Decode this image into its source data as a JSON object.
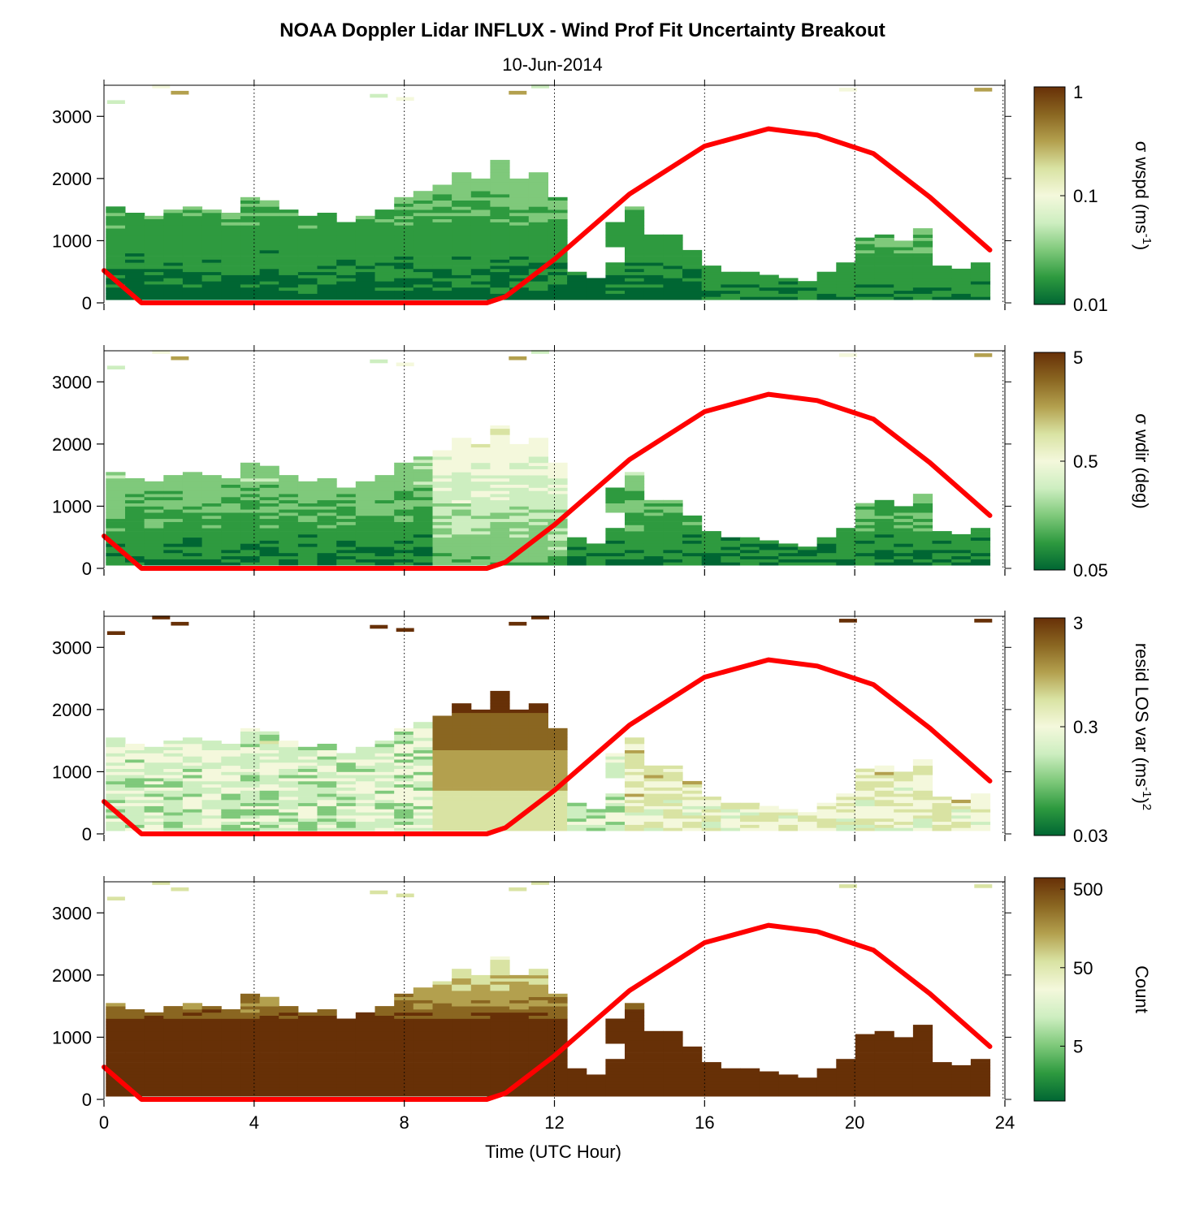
{
  "title": "NOAA Doppler Lidar INFLUX - Wind Prof Fit Uncertainty Breakout",
  "subtitle": "10-Jun-2014",
  "xlabel": "Time (UTC Hour)",
  "colors": {
    "curve": "#ff0000",
    "colormap": [
      "#006633",
      "#2e9a3f",
      "#7fc97b",
      "#cdeec0",
      "#f4f8dc",
      "#d9e3a3",
      "#b3a04e",
      "#8a6621",
      "#673007"
    ]
  },
  "chart_data": [
    {
      "type": "heatmap",
      "title": "",
      "xlabel": "",
      "ylabel": "",
      "xlim": [
        0,
        24
      ],
      "ylim": [
        0,
        3500
      ],
      "x_ticks": [
        0,
        4,
        8,
        12,
        16,
        20,
        24
      ],
      "y_ticks": [
        "0",
        "1000",
        "2000",
        "3000"
      ],
      "y_tick_values": [
        0,
        1000,
        2000,
        3000
      ],
      "colorbar": {
        "label": "σ wspd (ms",
        "sup": "-1",
        "label_suffix": ")",
        "scale": "log",
        "range": [
          0.01,
          1
        ],
        "ticks": [
          "1",
          "0.1",
          "0.01"
        ],
        "tick_values": [
          1,
          0.1,
          0.01
        ]
      },
      "profile_top_heights": [
        1550,
        1450,
        1400,
        1500,
        1550,
        1500,
        1450,
        1700,
        1650,
        1500,
        1400,
        1450,
        1300,
        1400,
        1500,
        1700,
        1800,
        1900,
        2100,
        2000,
        2300,
        2000,
        2100,
        1700,
        500,
        400,
        1300,
        1550,
        1100,
        1100,
        850,
        600,
        500,
        500,
        450,
        400,
        350,
        500,
        650,
        1050,
        1100,
        1000,
        1200,
        600,
        550,
        650
      ],
      "sparse_patches": [
        [
          0.3,
          3200
        ],
        [
          1.5,
          3450
        ],
        [
          2,
          3350
        ],
        [
          7.3,
          3300
        ],
        [
          8,
          3250
        ],
        [
          11,
          3350
        ],
        [
          11.6,
          3450
        ],
        [
          19.8,
          3400
        ],
        [
          23.4,
          3400
        ]
      ],
      "curve": {
        "name": "",
        "x": [
          0,
          1,
          10.2,
          10.7,
          12,
          14,
          16,
          17.7,
          19,
          20.5,
          22,
          23.6
        ],
        "y": [
          520,
          0,
          0,
          100,
          700,
          1750,
          2520,
          2800,
          2700,
          2400,
          1700,
          850
        ]
      }
    },
    {
      "type": "heatmap",
      "title": "",
      "xlabel": "",
      "ylabel": "",
      "xlim": [
        0,
        24
      ],
      "ylim": [
        0,
        3500
      ],
      "x_ticks": [
        0,
        4,
        8,
        12,
        16,
        20,
        24
      ],
      "y_ticks": [
        "0",
        "1000",
        "2000",
        "3000"
      ],
      "y_tick_values": [
        0,
        1000,
        2000,
        3000
      ],
      "colorbar": {
        "label": "σ wdir (deg)",
        "sup": "",
        "label_suffix": "",
        "scale": "log",
        "range": [
          0.05,
          5
        ],
        "ticks": [
          "5",
          "0.5",
          "0.05"
        ],
        "tick_values": [
          5,
          0.5,
          0.05
        ]
      },
      "profile_top_heights": [
        1550,
        1450,
        1400,
        1500,
        1550,
        1500,
        1450,
        1700,
        1650,
        1500,
        1400,
        1450,
        1300,
        1400,
        1500,
        1700,
        1800,
        1900,
        2100,
        2000,
        2300,
        2000,
        2100,
        1700,
        500,
        400,
        1300,
        1550,
        1100,
        1100,
        850,
        600,
        500,
        500,
        450,
        400,
        350,
        500,
        650,
        1050,
        1100,
        1000,
        1200,
        600,
        550,
        650
      ],
      "sparse_patches": [
        [
          0.3,
          3200
        ],
        [
          1.5,
          3450
        ],
        [
          2,
          3350
        ],
        [
          7.3,
          3300
        ],
        [
          8,
          3250
        ],
        [
          11,
          3350
        ],
        [
          11.6,
          3450
        ],
        [
          19.8,
          3400
        ],
        [
          23.4,
          3400
        ]
      ],
      "curve": {
        "name": "",
        "x": [
          0,
          1,
          10.2,
          10.7,
          12,
          14,
          16,
          17.7,
          19,
          20.5,
          22,
          23.6
        ],
        "y": [
          520,
          0,
          0,
          100,
          700,
          1750,
          2520,
          2800,
          2700,
          2400,
          1700,
          850
        ]
      }
    },
    {
      "type": "heatmap",
      "title": "",
      "xlabel": "",
      "ylabel": "",
      "xlim": [
        0,
        24
      ],
      "ylim": [
        0,
        3500
      ],
      "x_ticks": [
        0,
        4,
        8,
        12,
        16,
        20,
        24
      ],
      "y_ticks": [
        "0",
        "1000",
        "2000",
        "3000"
      ],
      "y_tick_values": [
        0,
        1000,
        2000,
        3000
      ],
      "colorbar": {
        "label": "resid LOS var (ms",
        "sup": "-1",
        "label_suffix": ")",
        "sup2": "2",
        "scale": "log",
        "range": [
          0.03,
          3
        ],
        "ticks": [
          "3",
          "0.3",
          "0.03"
        ],
        "tick_values": [
          3,
          0.3,
          0.03
        ]
      },
      "profile_top_heights": [
        1550,
        1450,
        1400,
        1500,
        1550,
        1500,
        1450,
        1700,
        1650,
        1500,
        1400,
        1450,
        1300,
        1400,
        1500,
        1700,
        1800,
        1900,
        2100,
        2000,
        2300,
        2000,
        2100,
        1700,
        500,
        400,
        1300,
        1550,
        1100,
        1100,
        850,
        600,
        500,
        500,
        450,
        400,
        350,
        500,
        650,
        1050,
        1100,
        1000,
        1200,
        600,
        550,
        650
      ],
      "sparse_patches": [
        [
          0.3,
          3200
        ],
        [
          1.5,
          3450
        ],
        [
          2,
          3350
        ],
        [
          7.3,
          3300
        ],
        [
          8,
          3250
        ],
        [
          11,
          3350
        ],
        [
          11.6,
          3450
        ],
        [
          19.8,
          3400
        ],
        [
          23.4,
          3400
        ]
      ],
      "curve": {
        "name": "",
        "x": [
          0,
          1,
          10.2,
          10.7,
          12,
          14,
          16,
          17.7,
          19,
          20.5,
          22,
          23.6
        ],
        "y": [
          520,
          0,
          0,
          100,
          700,
          1750,
          2520,
          2800,
          2700,
          2400,
          1700,
          850
        ]
      }
    },
    {
      "type": "heatmap",
      "title": "",
      "xlabel": "Time (UTC Hour)",
      "ylabel": "",
      "xlim": [
        0,
        24
      ],
      "ylim": [
        0,
        3500
      ],
      "x_ticks": [
        0,
        4,
        8,
        12,
        16,
        20,
        24
      ],
      "y_ticks": [
        "0",
        "1000",
        "2000",
        "3000"
      ],
      "y_tick_values": [
        0,
        1000,
        2000,
        3000
      ],
      "colorbar": {
        "label": "Count",
        "sup": "",
        "label_suffix": "",
        "scale": "log",
        "range": [
          1,
          700
        ],
        "ticks": [
          "500",
          "50",
          "5"
        ],
        "tick_values": [
          500,
          50,
          5
        ]
      },
      "profile_top_heights": [
        1550,
        1450,
        1400,
        1500,
        1550,
        1500,
        1450,
        1700,
        1650,
        1500,
        1400,
        1450,
        1300,
        1400,
        1500,
        1700,
        1800,
        1900,
        2100,
        2000,
        2300,
        2000,
        2100,
        1700,
        500,
        400,
        1300,
        1550,
        1100,
        1100,
        850,
        600,
        500,
        500,
        450,
        400,
        350,
        500,
        650,
        1050,
        1100,
        1000,
        1200,
        600,
        550,
        650
      ],
      "sparse_patches": [
        [
          0.3,
          3200
        ],
        [
          1.5,
          3450
        ],
        [
          2,
          3350
        ],
        [
          7.3,
          3300
        ],
        [
          8,
          3250
        ],
        [
          11,
          3350
        ],
        [
          11.6,
          3450
        ],
        [
          19.8,
          3400
        ],
        [
          23.4,
          3400
        ]
      ],
      "curve": {
        "name": "",
        "x": [
          0,
          1,
          10.2,
          10.7,
          12,
          14,
          16,
          17.7,
          19,
          20.5,
          22,
          23.6
        ],
        "y": [
          520,
          0,
          0,
          100,
          700,
          1750,
          2520,
          2800,
          2700,
          2400,
          1700,
          850
        ]
      }
    }
  ]
}
